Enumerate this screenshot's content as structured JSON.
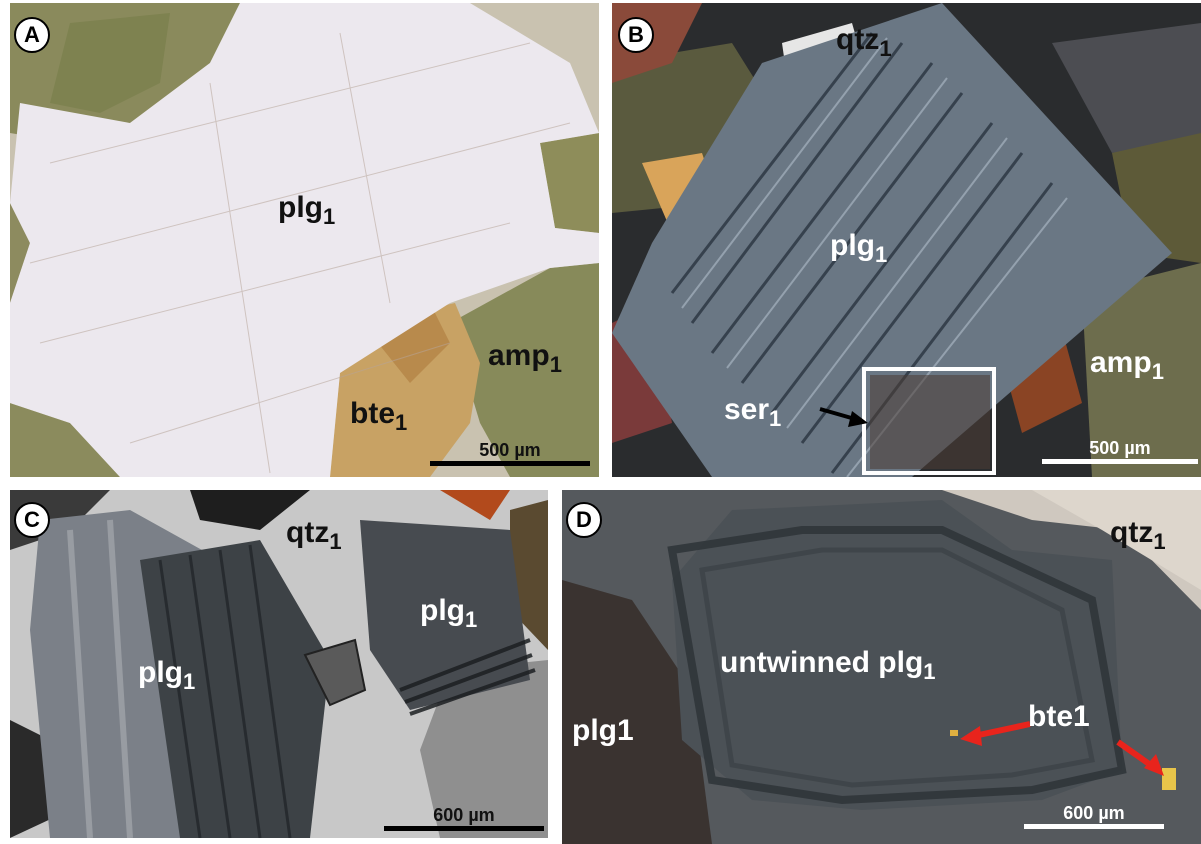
{
  "panels": {
    "a": {
      "badge": "A",
      "labels": {
        "plg": "plg",
        "plg_sub": "1",
        "amp": "amp",
        "amp_sub": "1",
        "bte": "bte",
        "bte_sub": "1"
      },
      "scale": "500 µm"
    },
    "b": {
      "badge": "B",
      "labels": {
        "qtz": "qtz",
        "qtz_sub": "1",
        "plg": "plg",
        "plg_sub": "1",
        "amp": "amp",
        "amp_sub": "1",
        "ser": "ser",
        "ser_sub": "1"
      },
      "scale": "500 µm"
    },
    "c": {
      "badge": "C",
      "labels": {
        "qtz": "qtz",
        "qtz_sub": "1",
        "plg_left": "plg",
        "plg_left_sub": "1",
        "plg_right": "plg",
        "plg_right_sub": "1"
      },
      "scale": "600 µm"
    },
    "d": {
      "badge": "D",
      "labels": {
        "qtz": "qtz",
        "qtz_sub": "1",
        "untwinned": "untwinned plg",
        "untwinned_sub": "1",
        "plg": "plg1",
        "bte": "bte1"
      },
      "scale": "600 µm"
    }
  },
  "colors": {
    "arrow_red": "#e8241c",
    "box_white": "#ffffff",
    "scale_black": "#000000",
    "scale_white": "#ffffff"
  }
}
